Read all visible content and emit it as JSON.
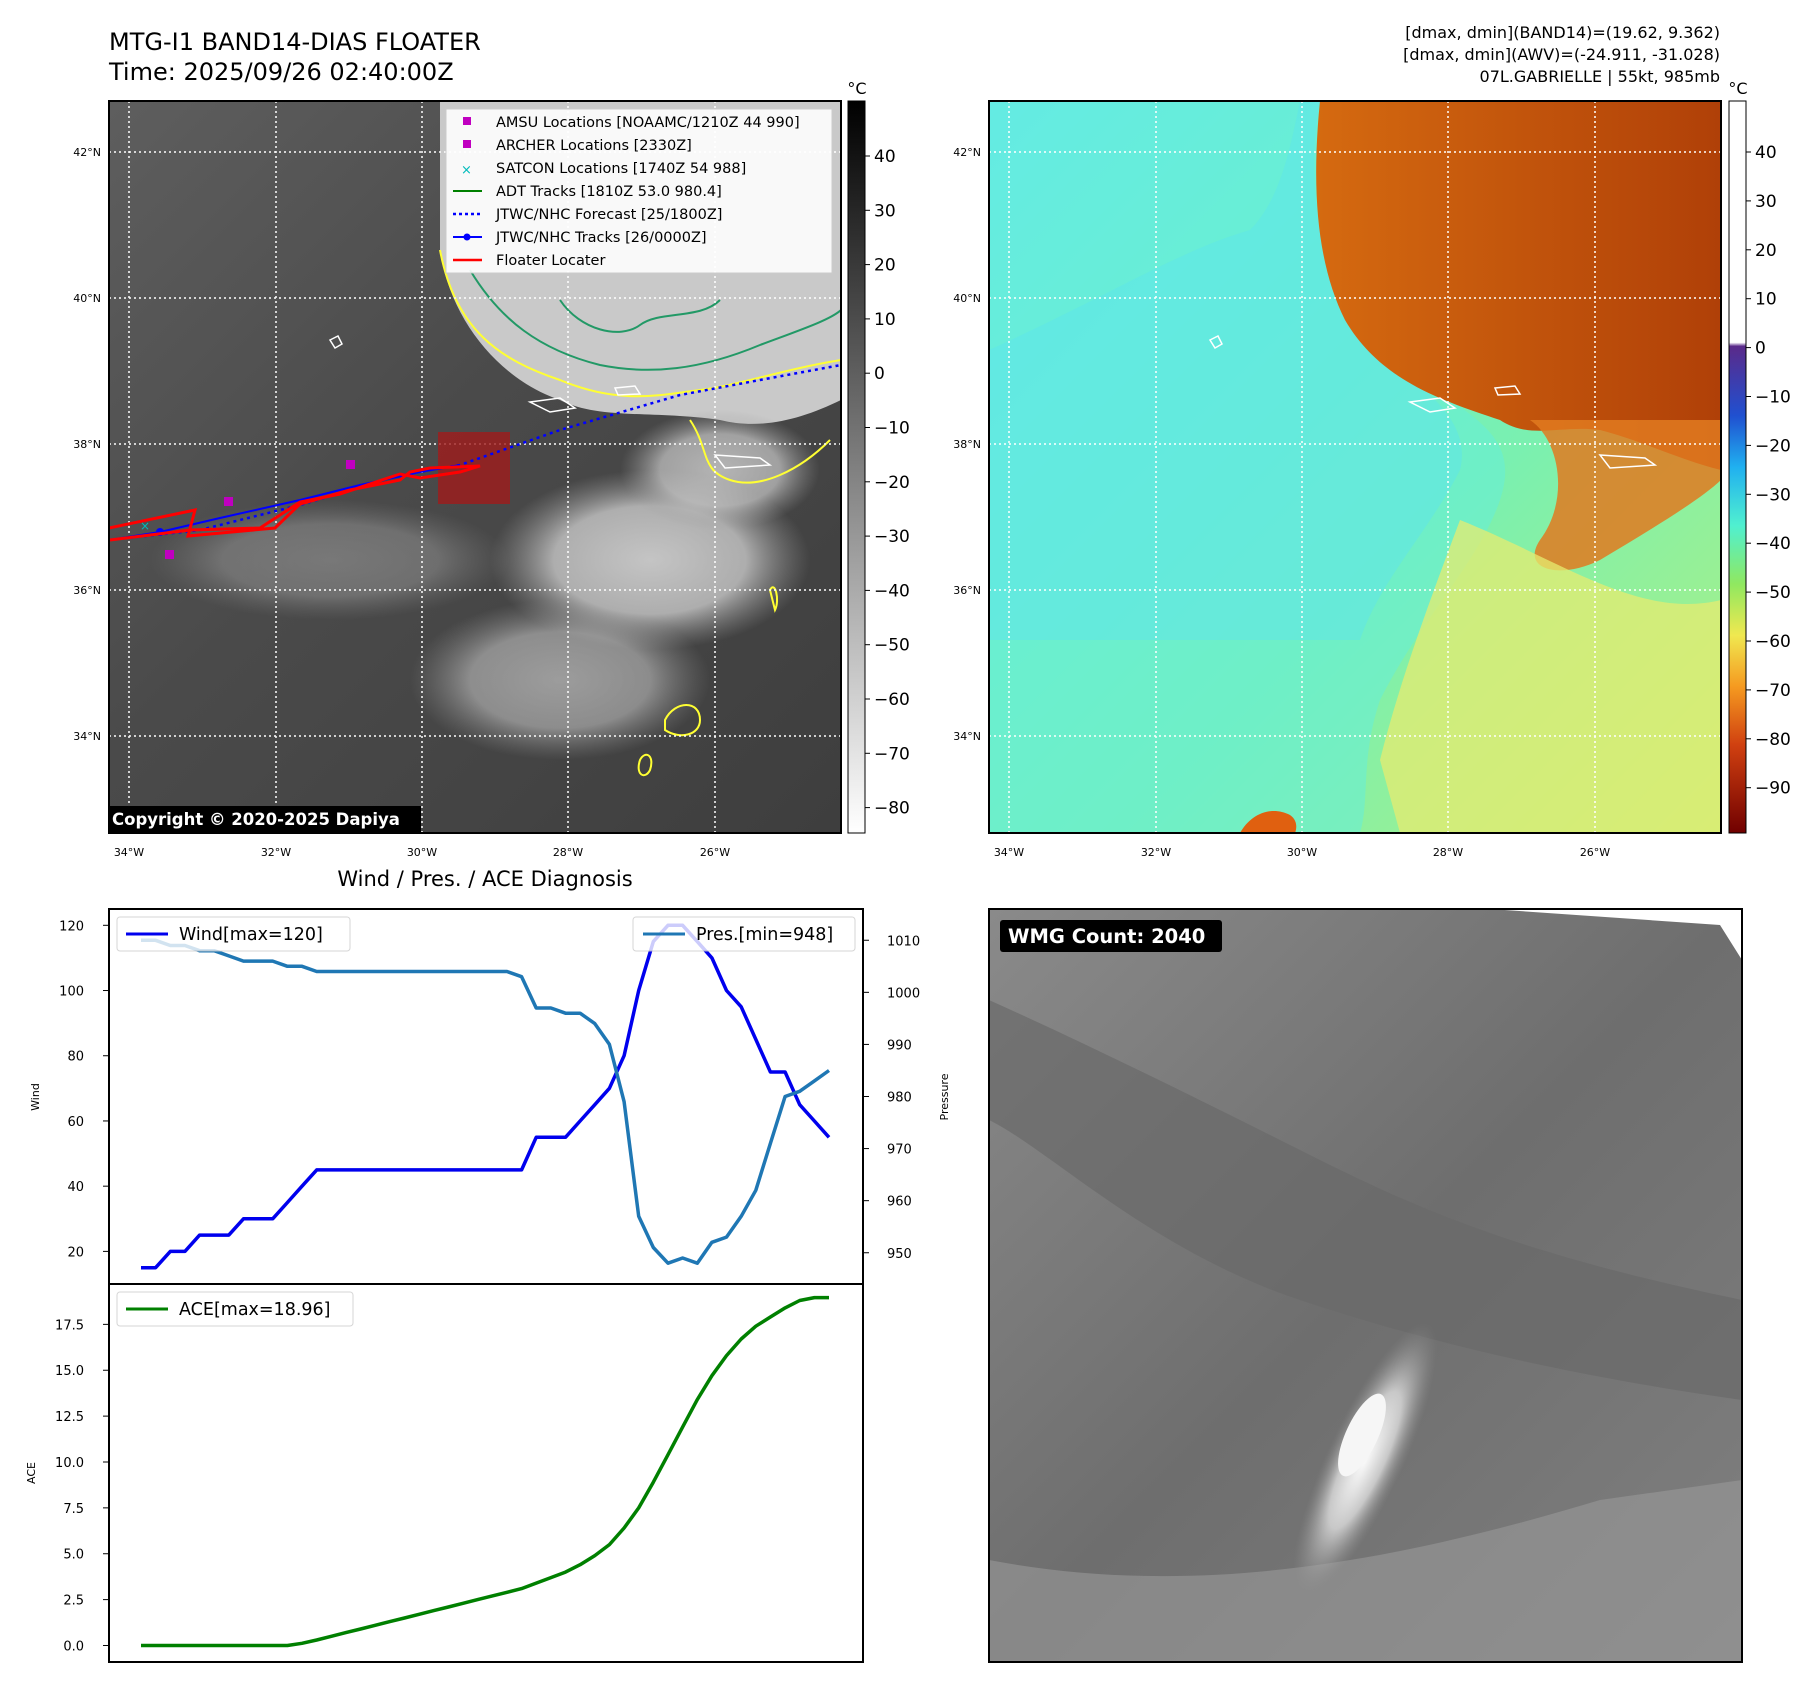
{
  "header": {
    "title_line1": "MTG-I1 BAND14-DIAS FLOATER",
    "title_line2": "Time: 2025/09/26 02:40:00Z",
    "info_line1": "[dmax, dmin](BAND14)=(19.62, 9.362)",
    "info_line2": "[dmax, dmin](AWV)=(-24.911, -31.028)",
    "info_line3": "07L.GABRIELLE | 55kt, 985mb"
  },
  "maps": {
    "lat_ticks": [
      "42°N",
      "40°N",
      "38°N",
      "36°N",
      "34°N"
    ],
    "lon_ticks": [
      "34°W",
      "32°W",
      "30°W",
      "28°W",
      "26°W"
    ],
    "copyright": "Copyright © 2020-2025 Dapiya",
    "left_colorbar": {
      "unit": "°C",
      "ticks": [
        "40",
        "30",
        "20",
        "10",
        "0",
        "−10",
        "−20",
        "−30",
        "−40",
        "−50",
        "−60",
        "−70",
        "−80"
      ]
    },
    "right_colorbar": {
      "unit": "°C",
      "ticks": [
        "40",
        "30",
        "20",
        "10",
        "0",
        "−10",
        "−20",
        "−30",
        "−40",
        "−50",
        "−60",
        "−70",
        "−80",
        "−90"
      ]
    },
    "legend": [
      {
        "label": "AMSU Locations [NOAAMC/1210Z 44 990]",
        "color": "#c000c0",
        "marker": "square"
      },
      {
        "label": "ARCHER Locations [2330Z]",
        "color": "#c000c0",
        "marker": "square"
      },
      {
        "label": "SATCON Locations [1740Z 54 988]",
        "color": "#00bbbb",
        "marker": "x"
      },
      {
        "label": "ADT Tracks [1810Z 53.0 980.4]",
        "color": "#008000",
        "marker": "line"
      },
      {
        "label": "JTWC/NHC Forecast [25/1800Z]",
        "color": "#0000ff",
        "marker": "dotted"
      },
      {
        "label": "JTWC/NHC Tracks [26/0000Z]",
        "color": "#0000ff",
        "marker": "line-dot"
      },
      {
        "label": "Floater Locater",
        "color": "#ff0000",
        "marker": "line"
      }
    ],
    "wmg_label": "WMG Count: 2040"
  },
  "chart_data": [
    {
      "type": "line",
      "title": "Wind / Pres. / ACE Diagnosis",
      "ylabel": "Wind",
      "y2label": "Pressure",
      "ylim": [
        10,
        125
      ],
      "y2lim": [
        944,
        1016
      ],
      "yticks": [
        20,
        40,
        60,
        80,
        100,
        120
      ],
      "y2ticks": [
        950,
        960,
        970,
        980,
        990,
        1000,
        1010
      ],
      "legend_left": "Wind[max=120]",
      "legend_right": "Pres.[min=948]",
      "series": [
        {
          "name": "Wind[max=120]",
          "color": "#0000ee",
          "values": [
            15,
            15,
            20,
            20,
            25,
            25,
            25,
            30,
            30,
            30,
            35,
            40,
            45,
            45,
            45,
            45,
            45,
            45,
            45,
            45,
            45,
            45,
            45,
            45,
            45,
            45,
            45,
            55,
            55,
            55,
            60,
            65,
            70,
            80,
            100,
            115,
            120,
            120,
            115,
            110,
            100,
            95,
            85,
            75,
            75,
            65,
            60,
            55
          ]
        },
        {
          "name": "Pres.[min=948]",
          "color": "#1f77b4",
          "axis": "right",
          "values": [
            1010,
            1010,
            1009,
            1009,
            1008,
            1008,
            1007,
            1006,
            1006,
            1006,
            1005,
            1005,
            1004,
            1004,
            1004,
            1004,
            1004,
            1004,
            1004,
            1004,
            1004,
            1004,
            1004,
            1004,
            1004,
            1004,
            1003,
            997,
            997,
            996,
            996,
            994,
            990,
            979,
            957,
            951,
            948,
            949,
            948,
            952,
            953,
            957,
            962,
            971,
            980,
            981,
            983,
            985
          ]
        }
      ]
    },
    {
      "type": "line",
      "ylabel": "ACE",
      "ylim": [
        -0.9,
        19.7
      ],
      "yticks": [
        0.0,
        2.5,
        5.0,
        7.5,
        10.0,
        12.5,
        15.0,
        17.5
      ],
      "legend": "ACE[max=18.96]",
      "series": [
        {
          "name": "ACE[max=18.96]",
          "color": "#008000",
          "values": [
            0,
            0,
            0,
            0,
            0,
            0,
            0,
            0,
            0,
            0,
            0,
            0.12,
            0.3,
            0.5,
            0.7,
            0.9,
            1.1,
            1.3,
            1.5,
            1.7,
            1.9,
            2.1,
            2.3,
            2.5,
            2.7,
            2.9,
            3.1,
            3.4,
            3.7,
            4.0,
            4.4,
            4.9,
            5.5,
            6.4,
            7.5,
            8.9,
            10.4,
            11.9,
            13.4,
            14.7,
            15.8,
            16.7,
            17.4,
            17.9,
            18.4,
            18.8,
            18.96,
            18.96
          ]
        }
      ]
    }
  ]
}
